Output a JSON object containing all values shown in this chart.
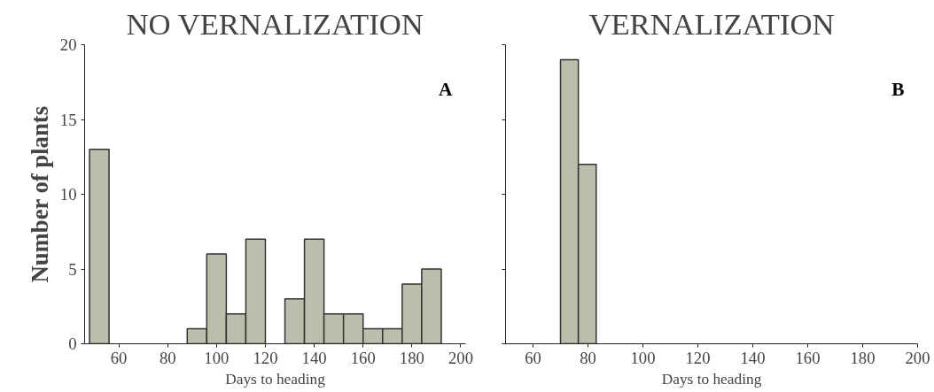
{
  "chart_data": [
    {
      "type": "histogram",
      "title": "NO VERNALIZATION",
      "xlabel": "Days to heading",
      "ylabel": "Number of plants",
      "bins": [
        48,
        56,
        64,
        72,
        80,
        88,
        96,
        104,
        112,
        120,
        128,
        136,
        144,
        152,
        160,
        168,
        176,
        184,
        192
      ],
      "values": [
        13,
        0,
        0,
        0,
        0,
        1,
        6,
        2,
        7,
        0,
        3,
        7,
        2,
        2,
        1,
        1,
        4,
        5
      ],
      "color": "#bcbdaa",
      "xlim": [
        46,
        202
      ],
      "ylim": [
        0,
        20
      ],
      "xticks": [
        60,
        80,
        100,
        120,
        140,
        160,
        180,
        200
      ],
      "yticks": [
        0,
        5,
        10,
        15,
        20
      ],
      "annotations": [
        "A"
      ],
      "grid": false
    },
    {
      "type": "histogram",
      "title": "VERNALIZATION",
      "xlabel": "Days to heading",
      "bins": [
        70,
        76.5,
        83
      ],
      "values": [
        19,
        12
      ],
      "color": "#bcbdaa",
      "xlim": [
        50,
        200
      ],
      "ylim": [
        0,
        20
      ],
      "xticks": [
        60,
        80,
        100,
        120,
        140,
        160,
        180,
        200
      ],
      "yticks": [
        {
          "value": 0,
          "label": null
        },
        {
          "value": 5,
          "label": null
        },
        {
          "value": 10,
          "label": null
        },
        {
          "value": 15,
          "label": null
        },
        {
          "value": 20,
          "label": null
        }
      ],
      "tick_labels": "x",
      "annotations": [
        "B"
      ],
      "grid": false
    }
  ]
}
